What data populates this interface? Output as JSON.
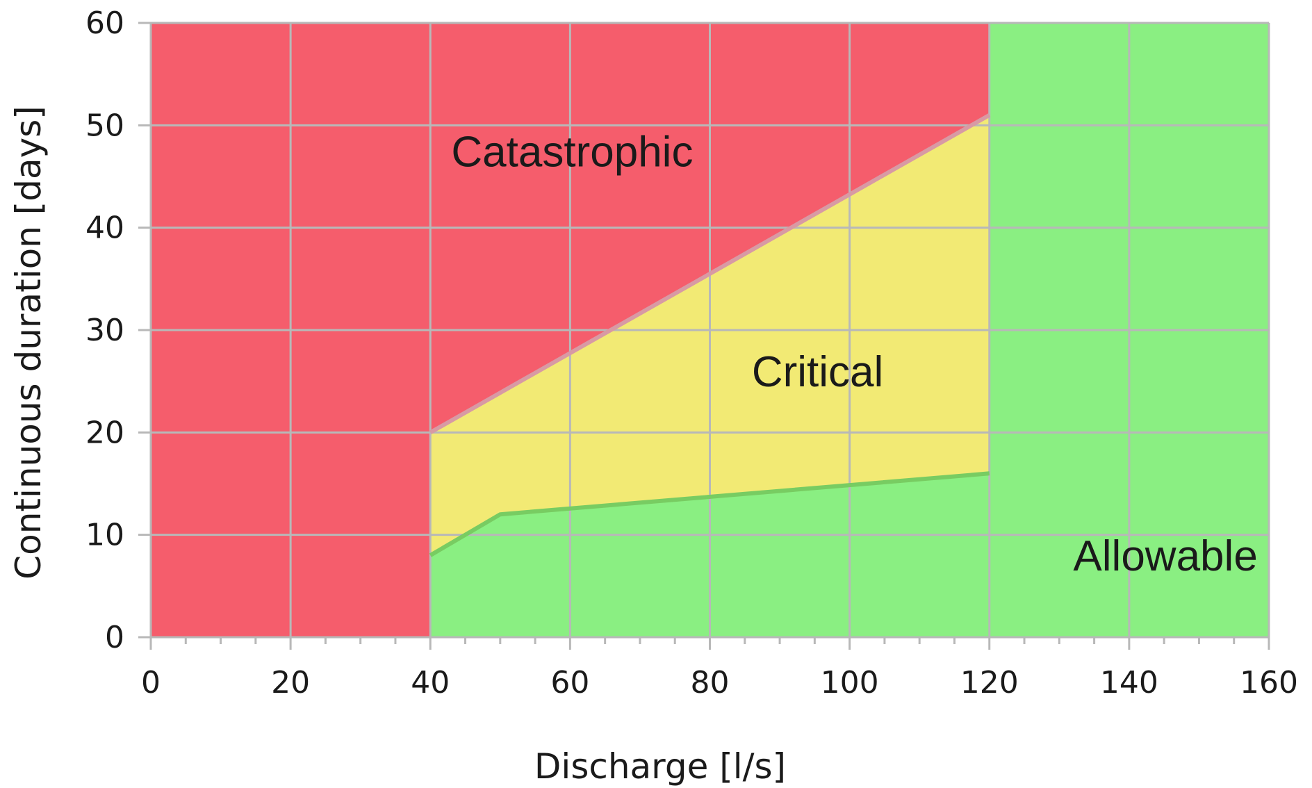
{
  "chart_data": {
    "type": "area",
    "title": "",
    "xlabel": "Discharge [l/s]",
    "ylabel": "Continuous duration [days]",
    "xlim": [
      0,
      160
    ],
    "ylim": [
      0,
      60
    ],
    "x_ticks": [
      "0",
      "20",
      "40",
      "60",
      "80",
      "100",
      "120",
      "140",
      "160"
    ],
    "y_ticks": [
      "0",
      "10",
      "20",
      "30",
      "40",
      "50",
      "60"
    ],
    "grid": true,
    "colors": {
      "catastrophic": "#f55d6c",
      "critical": "#f2ea74",
      "allowable": "#8aef82",
      "grid": "#b8b8b8",
      "boundary_upper": "#d89aa4",
      "boundary_lower": "#78cc62"
    },
    "regions": [
      {
        "name": "Catastrophic",
        "label": "Catastrophic",
        "label_at": {
          "x": 43,
          "y": 46
        },
        "polygon": [
          [
            0,
            0
          ],
          [
            40,
            0
          ],
          [
            40,
            20
          ],
          [
            120,
            51
          ],
          [
            120,
            60
          ],
          [
            0,
            60
          ]
        ]
      },
      {
        "name": "Critical",
        "label": "Critical",
        "label_at": {
          "x": 86,
          "y": 24.5
        },
        "polygon": [
          [
            40,
            20
          ],
          [
            120,
            51
          ],
          [
            120,
            16
          ],
          [
            50,
            12
          ],
          [
            40,
            8
          ]
        ]
      },
      {
        "name": "Allowable",
        "label": "Allowable",
        "label_at": {
          "x": 132,
          "y": 6.5
        },
        "polygon": [
          [
            40,
            0
          ],
          [
            40,
            8
          ],
          [
            50,
            12
          ],
          [
            120,
            16
          ],
          [
            120,
            60
          ],
          [
            160,
            60
          ],
          [
            160,
            0
          ]
        ]
      }
    ],
    "boundaries": [
      {
        "name": "catastrophic-critical",
        "points": [
          [
            40,
            20
          ],
          [
            120,
            51
          ]
        ]
      },
      {
        "name": "critical-allowable",
        "points": [
          [
            40,
            8
          ],
          [
            50,
            12
          ],
          [
            120,
            16
          ]
        ]
      }
    ]
  }
}
